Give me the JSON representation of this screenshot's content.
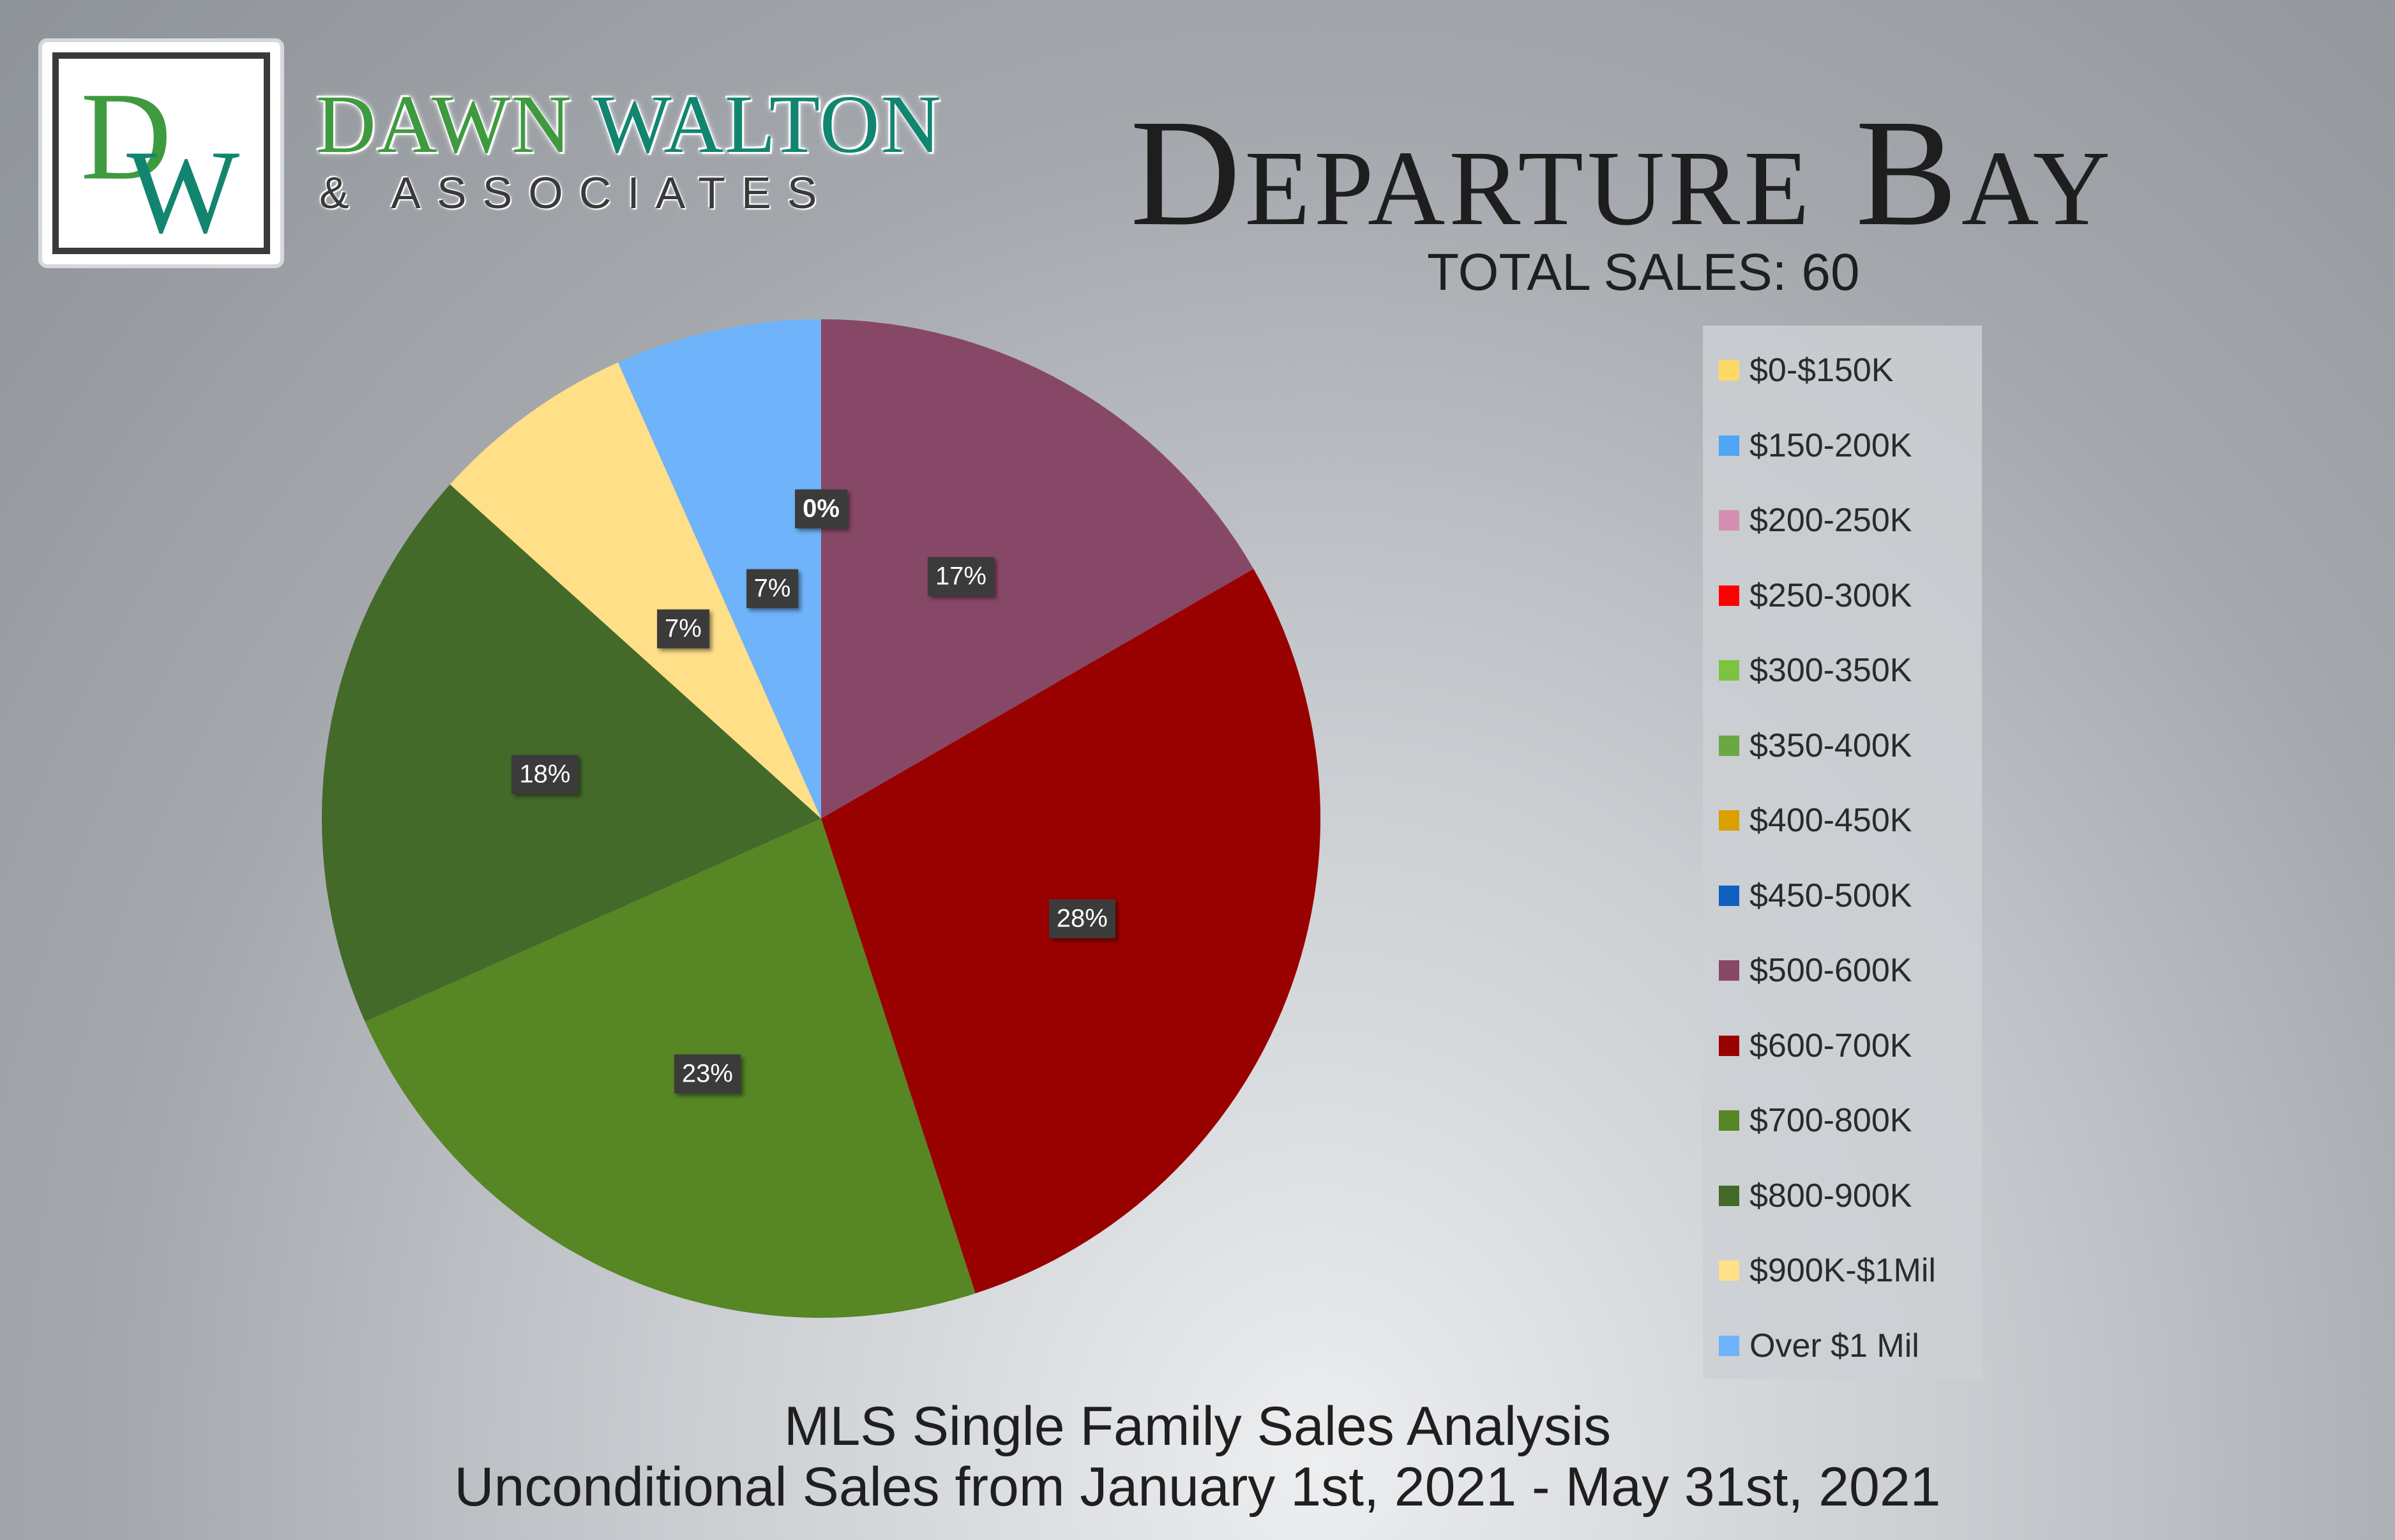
{
  "brand": {
    "monogram": "DW",
    "name_part1": "DAWN",
    "name_part2": "WALTON",
    "subline": "& ASSOCIATES",
    "colors": {
      "green": "#3f9a3f",
      "teal": "#128570"
    }
  },
  "header": {
    "title": "Departure Bay",
    "total_sales": "TOTAL SALES: 60"
  },
  "footer": {
    "line1": "MLS Single Family Sales Analysis",
    "line2": "Unconditional Sales from January 1st, 2021 - May 31st, 2021"
  },
  "chart_data": {
    "type": "pie",
    "categories": [
      "$0-$150K",
      "$150-200K",
      "$200-250K",
      "$250-300K",
      "$300-350K",
      "$350-400K",
      "$400-450K",
      "$450-500K",
      "$500-600K",
      "$600-700K",
      "$700-800K",
      "$800-900K",
      "$900K-$1Mil",
      "Over $1 Mil"
    ],
    "values": [
      0,
      0,
      0,
      0,
      0,
      0,
      0,
      0,
      10,
      17,
      14,
      11,
      4,
      4
    ],
    "labels": [
      "",
      "",
      "",
      "",
      "",
      "",
      "",
      "",
      "17%",
      "28%",
      "23%",
      "18%",
      "7%",
      "7%"
    ],
    "zero_label": "0%",
    "colors": [
      "#ffd966",
      "#4ea6f5",
      "#d48fb0",
      "#ff0000",
      "#7cc43f",
      "#6aa842",
      "#d9a000",
      "#1060c0",
      "#874867",
      "#990000",
      "#578625",
      "#446a2a",
      "#ffdf88",
      "#6fb3fa"
    ],
    "start_angle_deg": 0,
    "direction": "clockwise",
    "legend_position": "right"
  }
}
